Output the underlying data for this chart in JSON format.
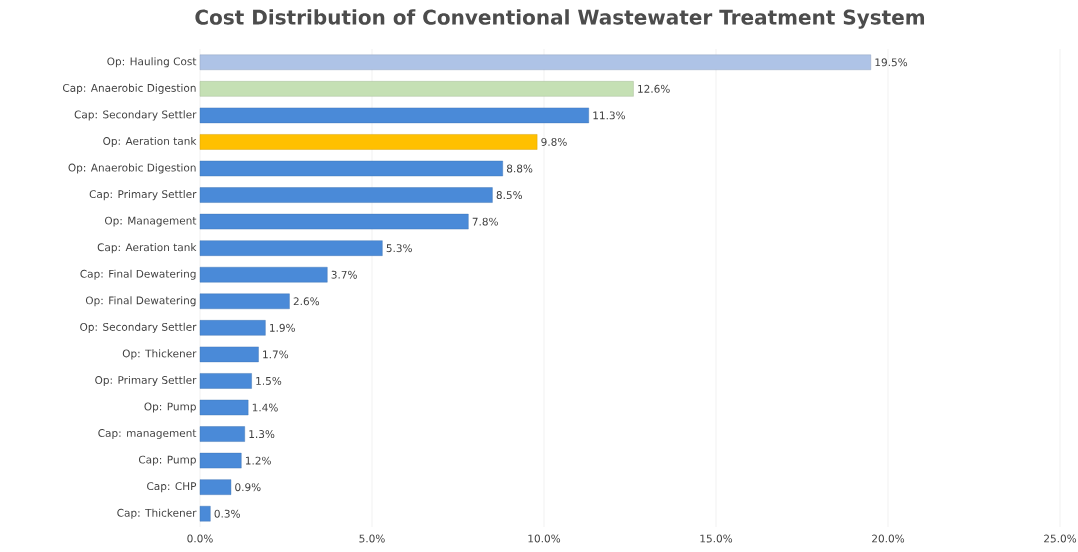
{
  "chart_data": {
    "type": "bar",
    "orientation": "horizontal",
    "title": "Cost Distribution of Conventional Wastewater Treatment System",
    "categories": [
      "Op: Hauling Cost",
      "Cap: Anaerobic Digestion",
      "Cap: Secondary Settler",
      "Op: Aeration tank",
      "Op: Anaerobic Digestion",
      "Cap: Primary Settler",
      "Op: Management",
      "Cap: Aeration tank",
      "Cap: Final Dewatering",
      "Op: Final Dewatering",
      "Op: Secondary Settler",
      "Op: Thickener",
      "Op: Primary Settler",
      "Op: Pump",
      "Cap: management",
      "Cap: Pump",
      "Cap: CHP",
      "Cap: Thickener"
    ],
    "values": [
      19.5,
      12.6,
      11.3,
      9.8,
      8.8,
      8.5,
      7.8,
      5.3,
      3.7,
      2.6,
      1.9,
      1.7,
      1.5,
      1.4,
      1.3,
      1.2,
      0.9,
      0.3
    ],
    "value_labels": [
      "19.5%",
      "12.6%",
      "11.3%",
      "9.8%",
      "8.8%",
      "8.5%",
      "7.8%",
      "5.3%",
      "3.7%",
      "2.6%",
      "1.9%",
      "1.7%",
      "1.5%",
      "1.4%",
      "1.3%",
      "1.2%",
      "0.9%",
      "0.3%"
    ],
    "colors": [
      "#aec3e6",
      "#c5e0b4",
      "#4a8ad8",
      "#ffc000",
      "#4a8ad8",
      "#4a8ad8",
      "#4a8ad8",
      "#4a8ad8",
      "#4a8ad8",
      "#4a8ad8",
      "#4a8ad8",
      "#4a8ad8",
      "#4a8ad8",
      "#4a8ad8",
      "#4a8ad8",
      "#4a8ad8",
      "#4a8ad8",
      "#4a8ad8"
    ],
    "xlim": [
      0,
      25
    ],
    "xticks": [
      {
        "value": 0,
        "label": "0.0%"
      },
      {
        "value": 5,
        "label": "5.0%"
      },
      {
        "value": 10,
        "label": "10.0%"
      },
      {
        "value": 15,
        "label": "15.0%"
      },
      {
        "value": 20,
        "label": "20.0%"
      },
      {
        "value": 25,
        "label": "25.0%"
      }
    ],
    "grid": "x"
  }
}
